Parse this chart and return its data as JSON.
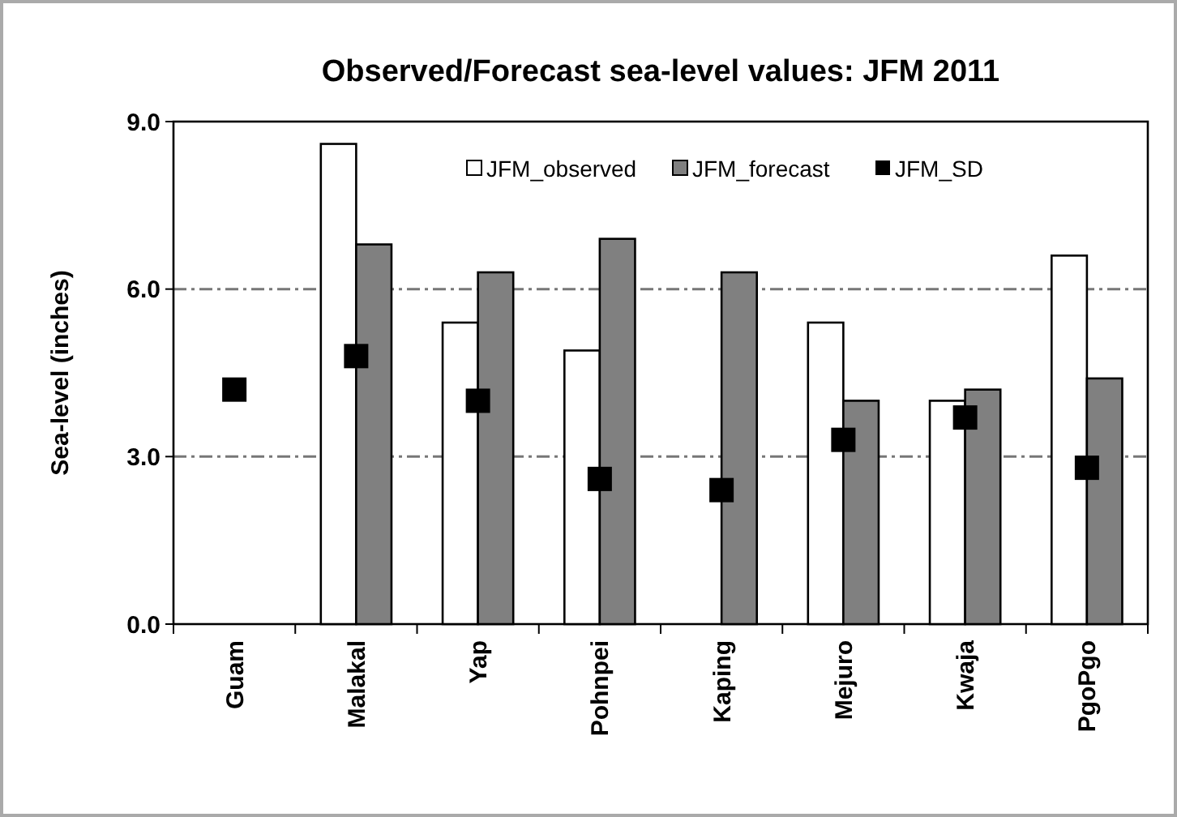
{
  "chart_data": {
    "type": "bar",
    "title": "Observed/Forecast sea-level values: JFM 2011",
    "ylabel": "Sea-level (inches)",
    "categories": [
      "Guam",
      "Malakal",
      "Yap",
      "Pohnpei",
      "Kaping",
      "Mejuro",
      "Kwaja",
      "PgoPgo"
    ],
    "series": [
      {
        "name": "JFM_observed",
        "color": "#ffffff",
        "values": [
          null,
          8.6,
          5.4,
          4.9,
          null,
          5.4,
          4.0,
          6.6
        ]
      },
      {
        "name": "JFM_forecast",
        "color": "#808080",
        "values": [
          null,
          6.8,
          6.3,
          6.9,
          6.3,
          4.0,
          4.2,
          4.4
        ]
      },
      {
        "name": "JFM_SD",
        "type": "scatter",
        "marker": "square",
        "color": "#000000",
        "x": [
          "Guam",
          "Malakal",
          "Yap",
          "Pohnpei",
          "Kaping",
          "Mejuro",
          "Kwaja",
          "PgoPgo"
        ],
        "values": [
          4.2,
          4.8,
          4.0,
          2.6,
          2.4,
          3.3,
          3.7,
          2.8
        ]
      }
    ],
    "ylim": [
      0,
      9
    ],
    "yticks": [
      {
        "value": 0,
        "label": "0.0"
      },
      {
        "value": 3,
        "label": "3.0"
      },
      {
        "value": 6,
        "label": "6.0"
      },
      {
        "value": 9,
        "label": "9.0"
      }
    ],
    "grid": "y",
    "line_style": "dashed",
    "legend": "top right"
  }
}
